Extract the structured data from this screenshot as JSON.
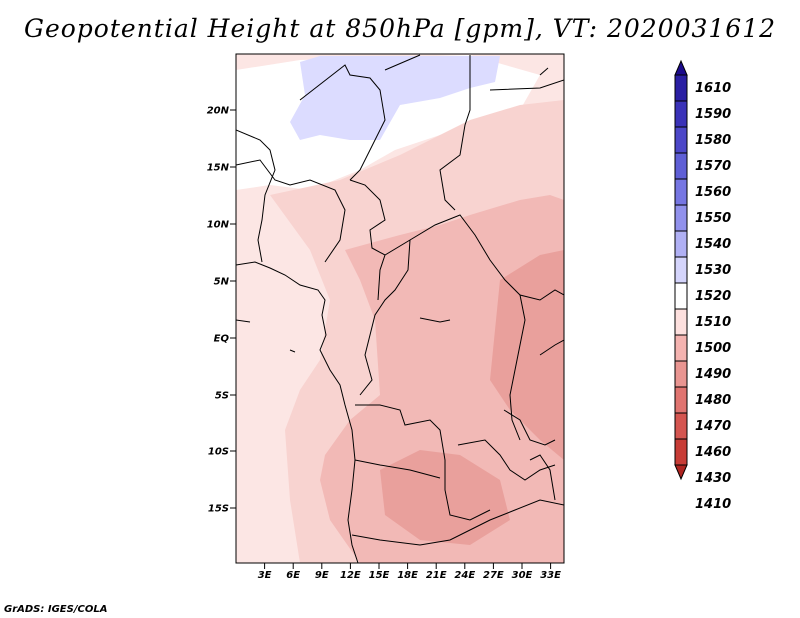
{
  "title": "Geopotential Height at 850hPa [gpm], VT: 2020031612",
  "credit": "GrADS: IGES/COLA",
  "map": {
    "lat_ticks": [
      "20N",
      "15N",
      "10N",
      "5N",
      "EQ",
      "5S",
      "10S",
      "15S"
    ],
    "lon_ticks": [
      "3E",
      "6E",
      "9E",
      "12E",
      "15E",
      "18E",
      "21E",
      "24E",
      "27E",
      "30E",
      "33E"
    ]
  },
  "colorbar": {
    "levels": [
      "1610",
      "1590",
      "1580",
      "1570",
      "1560",
      "1550",
      "1540",
      "1530",
      "1520",
      "1510",
      "1500",
      "1490",
      "1480",
      "1470",
      "1460",
      "1430",
      "1410"
    ],
    "colors": [
      "#1c0b8c",
      "#2a1fa3",
      "#3a32b8",
      "#4c47c8",
      "#5f5fd6",
      "#7676e2",
      "#9191ec",
      "#b0b0f4",
      "#d4d4fb",
      "#ffffff",
      "#fde0de",
      "#f4b3b0",
      "#e99591",
      "#e07470",
      "#d45550",
      "#c73c36",
      "#ae2420"
    ]
  },
  "colors": {
    "pale_pink": "#fce6e4",
    "light_pink": "#f8d3d0",
    "mid_pink": "#f2b9b6",
    "deep_pink": "#e9a09c",
    "lavender": "#dcdcff",
    "border": "#000000"
  }
}
